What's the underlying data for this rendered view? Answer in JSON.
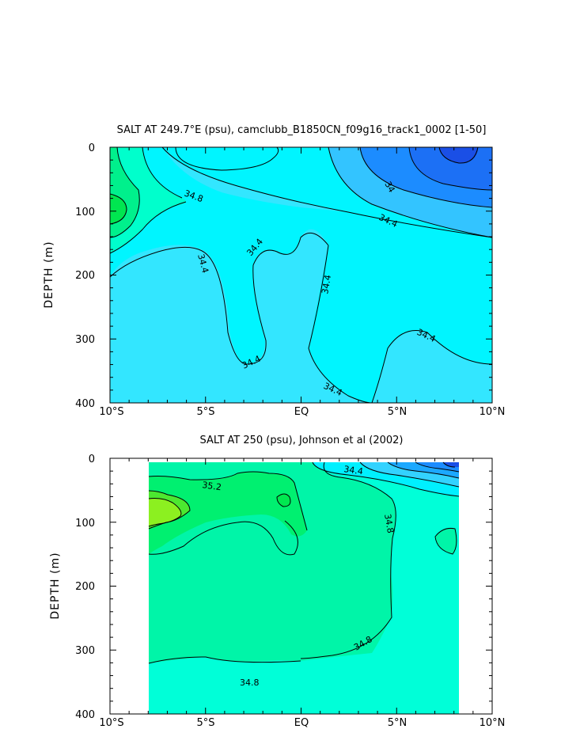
{
  "chart_data": [
    {
      "type": "heatmap",
      "title": "SALT AT 249.7°E (psu), camclubb_B1850CN_f09g16_track1_0002 [1-50]",
      "ylabel": "DEPTH (m)",
      "xlabel": "",
      "x_ticks": [
        "10°S",
        "5°S",
        "EQ",
        "5°N",
        "10°N"
      ],
      "y_ticks": [
        "0",
        "100",
        "200",
        "300",
        "400"
      ],
      "xlim": [
        -10,
        10
      ],
      "ylim": [
        400,
        0
      ],
      "contour_labels": [
        "34.8",
        "34",
        "34.4",
        "34.4",
        "34.4",
        "34.4",
        "34.4",
        "34.4",
        "34.4"
      ],
      "colors": {
        "deep_blue": "#1a4fe6",
        "blue": "#1c8cff",
        "light_blue": "#33c4ff",
        "cyan_blue": "#33e6ff",
        "cyan": "#00f5ff",
        "aqua_green": "#00ffcc",
        "green": "#00f08c",
        "bright_green": "#00e650"
      }
    },
    {
      "type": "heatmap",
      "title": "SALT AT 250 (psu), Johnson et al (2002)",
      "ylabel": "DEPTH (m)",
      "xlabel": "",
      "x_ticks": [
        "10°S",
        "5°S",
        "EQ",
        "5°N",
        "10°N"
      ],
      "y_ticks": [
        "0",
        "100",
        "200",
        "300",
        "400"
      ],
      "xlim": [
        -10,
        10
      ],
      "ylim": [
        400,
        0
      ],
      "data_xrange": [
        -8,
        8
      ],
      "contour_labels": [
        "35.2",
        "34.4",
        "34.8",
        "34.8",
        "34.8"
      ],
      "colors": {
        "aqua": "#00ffd8",
        "teal_green": "#00f5a8",
        "green": "#00f070",
        "lime": "#8cf020",
        "cyan": "#00f0ff",
        "blue": "#1c8cff",
        "deep_blue": "#1a4fe6"
      }
    }
  ]
}
